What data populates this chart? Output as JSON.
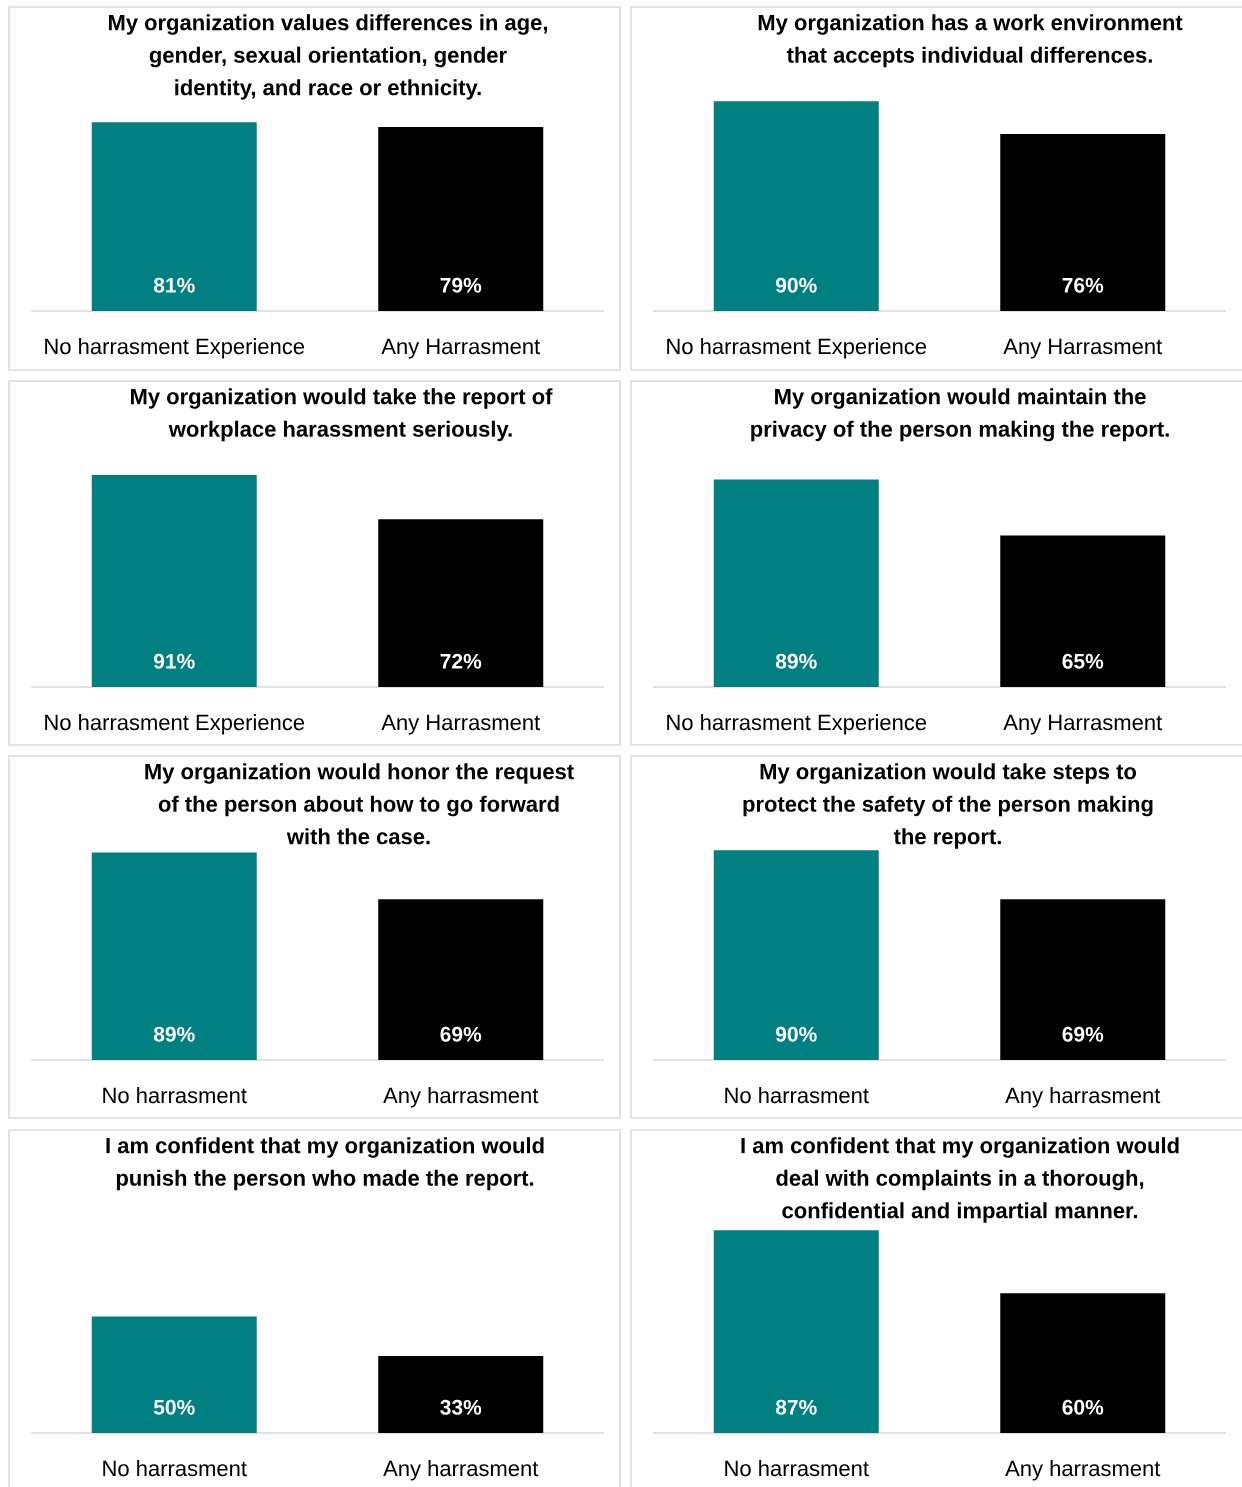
{
  "chart_data": [
    {
      "type": "bar",
      "title": "My organization values differences in age, gender, sexual orientation, gender identity, and race or ethnicity.",
      "categories": [
        "No harrasment Experience",
        "Any Harrasment"
      ],
      "values": [
        81,
        79
      ],
      "colors": [
        "#008080",
        "#000000"
      ],
      "value_labels": [
        "81%",
        "79%"
      ],
      "tick_labels": "x"
    },
    {
      "type": "bar",
      "title": "My organization has a work environment that accepts individual differences.",
      "categories": [
        "No harrasment Experience",
        "Any Harrasment"
      ],
      "values": [
        90,
        76
      ],
      "colors": [
        "#008080",
        "#000000"
      ],
      "value_labels": [
        "90%",
        "76%"
      ],
      "tick_labels": "x"
    },
    {
      "type": "bar",
      "title": "My organization would take the report of workplace harassment seriously.",
      "categories": [
        "No harrasment Experience",
        "Any Harrasment"
      ],
      "values": [
        91,
        72
      ],
      "colors": [
        "#008080",
        "#000000"
      ],
      "value_labels": [
        "91%",
        "72%"
      ],
      "tick_labels": "x"
    },
    {
      "type": "bar",
      "title": "My organization would maintain the privacy of the person making the report.",
      "categories": [
        "No harrasment Experience",
        "Any Harrasment"
      ],
      "values": [
        89,
        65
      ],
      "colors": [
        "#008080",
        "#000000"
      ],
      "value_labels": [
        "89%",
        "65%"
      ],
      "tick_labels": "x"
    },
    {
      "type": "bar",
      "title": "My organization would honor the request of the person about how to go forward with the case.",
      "categories": [
        "No harrasment",
        "Any harrasment"
      ],
      "values": [
        89,
        69
      ],
      "colors": [
        "#008080",
        "#000000"
      ],
      "value_labels": [
        "89%",
        "69%"
      ],
      "tick_labels": "x"
    },
    {
      "type": "bar",
      "title": "My organization would take steps to protect the safety of the person making the report.",
      "categories": [
        "No harrasment",
        "Any harrasment"
      ],
      "values": [
        90,
        69
      ],
      "colors": [
        "#008080",
        "#000000"
      ],
      "value_labels": [
        "90%",
        "69%"
      ],
      "tick_labels": "x"
    },
    {
      "type": "bar",
      "title": "I am confident that my organization would punish the person who made the report.",
      "categories": [
        "No harrasment",
        "Any harrasment"
      ],
      "values": [
        50,
        33
      ],
      "colors": [
        "#008080",
        "#000000"
      ],
      "value_labels": [
        "50%",
        "33%"
      ],
      "tick_labels": "x"
    },
    {
      "type": "bar",
      "title": "I am confident that my organization would deal with complaints in a thorough, confidential and impartial manner.",
      "categories": [
        "No harrasment",
        "Any harrasment"
      ],
      "values": [
        87,
        60
      ],
      "colors": [
        "#008080",
        "#000000"
      ],
      "value_labels": [
        "87%",
        "60%"
      ],
      "tick_labels": "x"
    }
  ]
}
